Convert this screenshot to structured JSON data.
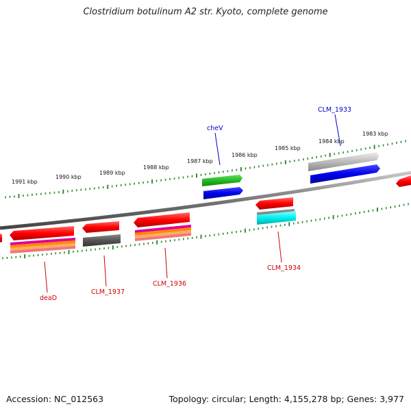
{
  "title": "Clostridium botulinum A2 str. Kyoto, complete genome",
  "accession_text": "Accession: NC_012563",
  "summary_text": "Topology: circular; Length: 4,155,278 bp; Genes: 3,977",
  "colors": {
    "backbone": "#808080",
    "tick": "#2e8b2e",
    "forward_label": "#0000cc",
    "reverse_label": "#cc0000"
  },
  "ticks": [
    {
      "label": "1991 kbp"
    },
    {
      "label": "1990 kbp"
    },
    {
      "label": "1989 kbp"
    },
    {
      "label": "1988 kbp"
    },
    {
      "label": "1987 kbp"
    },
    {
      "label": "1986 kbp"
    },
    {
      "label": "1985 kbp"
    },
    {
      "label": "1984 kbp"
    },
    {
      "label": "1983 kbp"
    }
  ],
  "gene_labels": [
    {
      "name": "cheV",
      "strand": "forward"
    },
    {
      "name": "CLM_1933",
      "strand": "forward"
    },
    {
      "name": "deaD",
      "strand": "reverse"
    },
    {
      "name": "CLM_1937",
      "strand": "reverse"
    },
    {
      "name": "CLM_1936",
      "strand": "reverse"
    },
    {
      "name": "CLM_1934",
      "strand": "reverse"
    }
  ]
}
